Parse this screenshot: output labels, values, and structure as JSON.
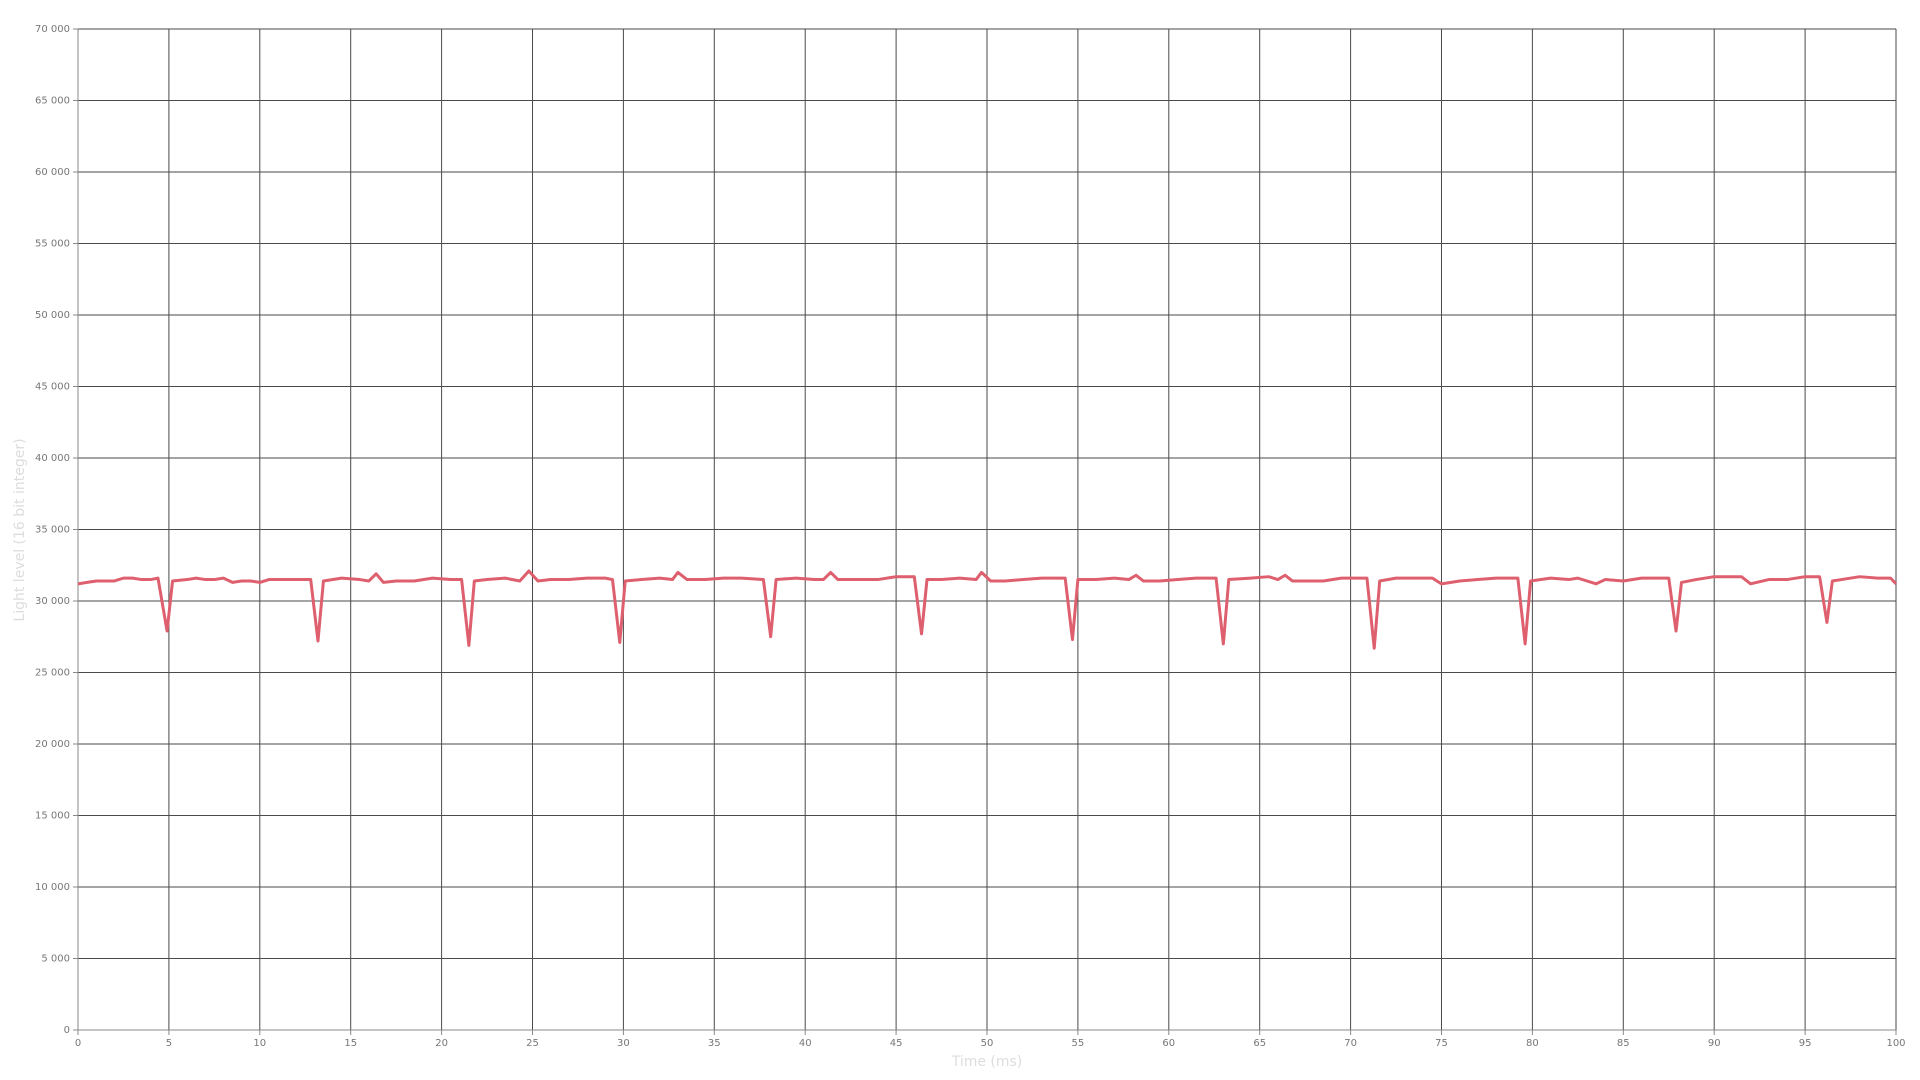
{
  "chart_data": {
    "type": "line",
    "x_label": "Time (ms)",
    "y_label": "Light level (16 bit integer)",
    "xlim": [
      0,
      100
    ],
    "xticks": [
      0,
      5,
      10,
      15,
      20,
      25,
      30,
      35,
      40,
      45,
      50,
      55,
      60,
      65,
      70,
      75,
      80,
      85,
      90,
      95,
      100
    ],
    "ylim": [
      0,
      70000
    ],
    "yticks": [
      0,
      {
        "value": 5000,
        "label": "5 000"
      },
      {
        "value": 10000,
        "label": "10 000"
      },
      {
        "value": 15000,
        "label": "15 000"
      },
      {
        "value": 20000,
        "label": "20 000"
      },
      {
        "value": 25000,
        "label": "25 000"
      },
      {
        "value": 30000,
        "label": "30 000"
      },
      {
        "value": 35000,
        "label": "35 000"
      },
      {
        "value": 40000,
        "label": "40 000"
      },
      {
        "value": 45000,
        "label": "45 000"
      },
      {
        "value": 50000,
        "label": "50 000"
      },
      {
        "value": 55000,
        "label": "55 000"
      },
      {
        "value": 60000,
        "label": "60 000"
      },
      {
        "value": 65000,
        "label": "65 000"
      },
      {
        "value": 70000,
        "label": "70 000"
      }
    ],
    "grid": true,
    "color": "#de5f6d",
    "x": [
      0,
      0.5,
      1,
      1.5,
      2,
      2.5,
      3,
      3.5,
      4,
      4.4,
      4.9,
      5.2,
      6,
      6.5,
      7,
      7.5,
      8,
      8.5,
      9,
      9.5,
      10,
      10.5,
      11,
      11.5,
      12,
      12.8,
      13.2,
      13.5,
      14.5,
      15.5,
      16,
      16.4,
      16.8,
      17.5,
      18.5,
      19.5,
      20.5,
      21.1,
      21.5,
      21.8,
      22.5,
      23.5,
      24.3,
      24.8,
      25.3,
      26,
      27,
      28,
      29,
      29.4,
      29.8,
      30.1,
      31,
      32,
      32.7,
      33,
      33.5,
      34.5,
      35.5,
      36.5,
      37.7,
      38.1,
      38.4,
      39.5,
      40.5,
      41,
      41.4,
      41.8,
      43,
      44,
      45,
      46,
      46.4,
      46.7,
      47.5,
      48.5,
      49.4,
      49.7,
      50.2,
      51,
      52,
      53,
      54.3,
      54.7,
      55,
      56,
      57,
      57.8,
      58.2,
      58.6,
      59.5,
      60.5,
      61.5,
      62.6,
      63,
      63.3,
      64.5,
      65.5,
      66,
      66.4,
      66.8,
      67.5,
      68.5,
      69.5,
      70.9,
      71.3,
      71.6,
      72.5,
      73.5,
      74.5,
      75,
      76,
      77,
      78,
      79.2,
      79.6,
      79.9,
      81,
      82,
      82.5,
      83.5,
      84,
      85,
      86,
      87.5,
      87.9,
      88.2,
      89,
      90,
      91,
      91.5,
      92,
      93,
      94,
      95,
      95.8,
      96.2,
      96.5,
      97,
      98,
      99,
      99.7,
      100
    ],
    "values": [
      31200,
      31300,
      31400,
      31400,
      31400,
      31600,
      31600,
      31500,
      31500,
      31600,
      27900,
      31400,
      31500,
      31600,
      31500,
      31500,
      31600,
      31300,
      31400,
      31400,
      31300,
      31500,
      31500,
      31500,
      31500,
      31500,
      27200,
      31400,
      31600,
      31500,
      31400,
      31900,
      31300,
      31400,
      31400,
      31600,
      31500,
      31500,
      26900,
      31400,
      31500,
      31600,
      31400,
      32100,
      31400,
      31500,
      31500,
      31600,
      31600,
      31500,
      27100,
      31400,
      31500,
      31600,
      31500,
      32000,
      31500,
      31500,
      31600,
      31600,
      31500,
      27500,
      31500,
      31600,
      31500,
      31500,
      32000,
      31500,
      31500,
      31500,
      31700,
      31700,
      27700,
      31500,
      31500,
      31600,
      31500,
      32000,
      31400,
      31400,
      31500,
      31600,
      31600,
      27300,
      31500,
      31500,
      31600,
      31500,
      31800,
      31400,
      31400,
      31500,
      31600,
      31600,
      27000,
      31500,
      31600,
      31700,
      31500,
      31800,
      31400,
      31400,
      31400,
      31600,
      31600,
      26700,
      31400,
      31600,
      31600,
      31600,
      31200,
      31400,
      31500,
      31600,
      31600,
      27000,
      31400,
      31600,
      31500,
      31600,
      31200,
      31500,
      31400,
      31600,
      31600,
      27900,
      31300,
      31500,
      31700,
      31700,
      31700,
      31200,
      31500,
      31500,
      31700,
      31700,
      28500,
      31400,
      31500,
      31700,
      31600,
      31600,
      31200
    ]
  }
}
